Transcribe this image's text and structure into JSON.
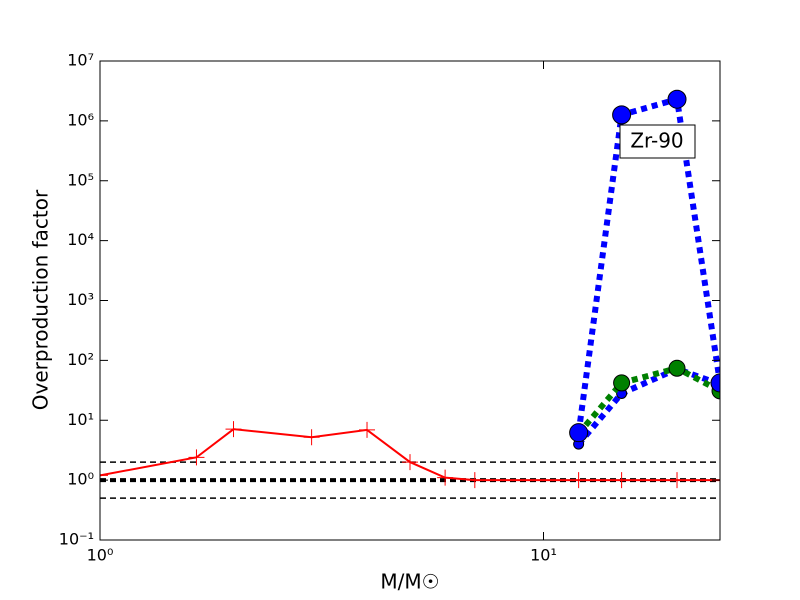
{
  "chart_data": {
    "type": "line",
    "xlabel": "M/M☉",
    "ylabel": "Overproduction factor",
    "xscale": "log",
    "yscale": "log",
    "xlim": [
      1,
      25
    ],
    "ylim": [
      0.1,
      10000000
    ],
    "xticks": [
      {
        "value": 1,
        "label": "10⁰"
      },
      {
        "value": 10,
        "label": "10¹"
      }
    ],
    "yticks": [
      {
        "value": 0.1,
        "label": "10⁻¹"
      },
      {
        "value": 1,
        "label": "10⁰"
      },
      {
        "value": 10,
        "label": "10¹"
      },
      {
        "value": 100,
        "label": "10²"
      },
      {
        "value": 1000,
        "label": "10³"
      },
      {
        "value": 10000,
        "label": "10⁴"
      },
      {
        "value": 100000,
        "label": "10⁵"
      },
      {
        "value": 1000000,
        "label": "10⁶"
      },
      {
        "value": 10000000,
        "label": "10⁷"
      }
    ],
    "hlines": [
      {
        "value": 2,
        "color": "#000000",
        "width": 1.5
      },
      {
        "value": 1,
        "color": "#000000",
        "width": 4
      },
      {
        "value": 0.5,
        "color": "#000000",
        "width": 1.5
      }
    ],
    "annotation": "Zr-90",
    "series": [
      {
        "color": "#ff0000",
        "style": "solid",
        "marker": "plus",
        "x": [
          1,
          1.65,
          2,
          3,
          4,
          5,
          6,
          7,
          12,
          15,
          20,
          25
        ],
        "values": [
          1.2,
          2.4,
          7.1,
          5.2,
          6.9,
          2.0,
          1.1,
          1.0,
          1.0,
          1.0,
          1.0,
          1.0
        ]
      },
      {
        "color": "#0000ff",
        "style": "dotted",
        "marker": "circle-small",
        "x": [
          12,
          15,
          20,
          25
        ],
        "values": [
          4,
          28,
          72,
          40
        ]
      },
      {
        "color": "#008000",
        "style": "dotted",
        "marker": "circle",
        "x": [
          12,
          15,
          20,
          25
        ],
        "values": [
          6,
          42,
          74,
          31
        ]
      },
      {
        "color": "#0000ff",
        "style": "dotted",
        "marker": "circle-large",
        "x": [
          12,
          15,
          20,
          25
        ],
        "values": [
          6.2,
          1260000,
          2300000,
          42
        ]
      }
    ]
  }
}
